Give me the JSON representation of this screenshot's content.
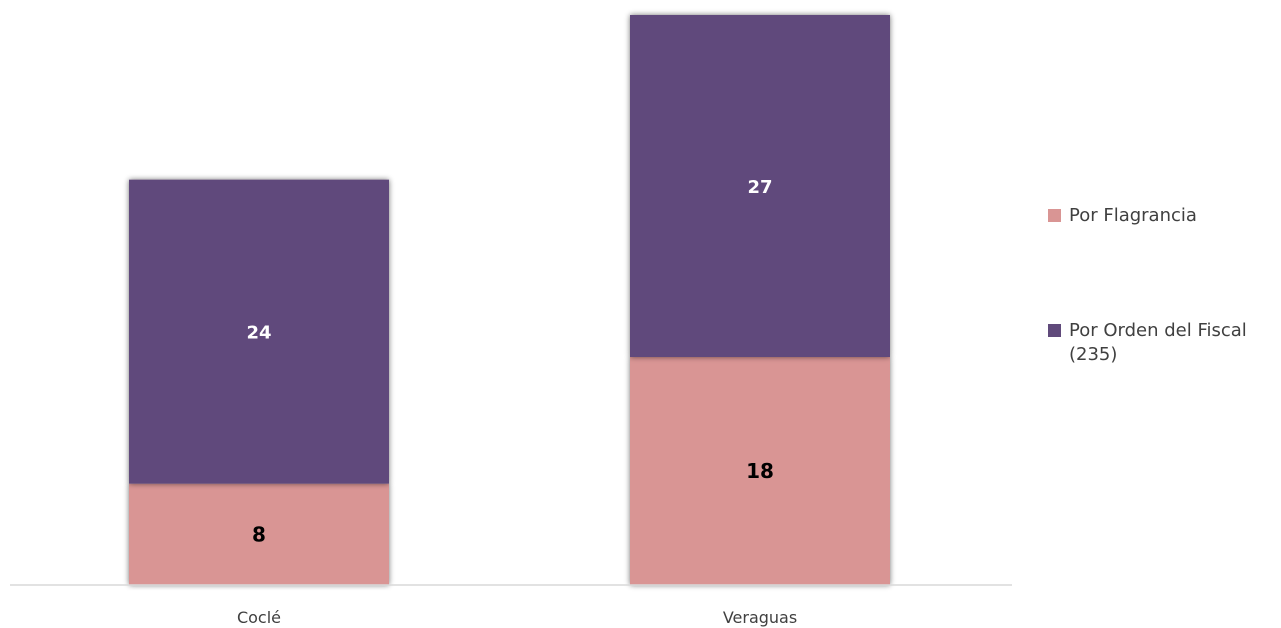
{
  "chart_data": {
    "type": "bar",
    "stacked": true,
    "title": "",
    "xlabel": "",
    "ylabel": "",
    "ylim": [
      0,
      45
    ],
    "grid": false,
    "legend_position": "right",
    "categories": [
      "Coclé",
      "Veraguas"
    ],
    "series": [
      {
        "name": "Por Flagrancia",
        "values": [
          8,
          18
        ],
        "color": "#D99594",
        "label_color": "#000000"
      },
      {
        "name": "Por Orden del Fiscal (235)",
        "values": [
          24,
          27
        ],
        "color": "#604A7B",
        "label_color": "#ffffff"
      }
    ]
  }
}
